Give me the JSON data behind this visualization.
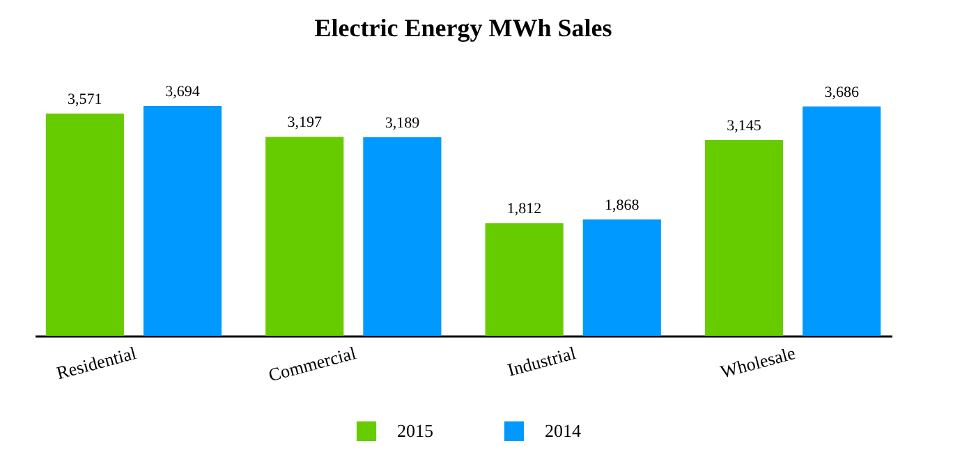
{
  "chart_data": {
    "type": "bar",
    "title": "Electric Energy MWh Sales",
    "categories": [
      "Residential",
      "Commercial",
      "Industrial",
      "Wholesale"
    ],
    "series": [
      {
        "name": "2015",
        "color": "#66cc00",
        "values": [
          3571,
          3197,
          1812,
          3145
        ],
        "value_labels": [
          "3,571",
          "3,197",
          "1,812",
          "3,145"
        ]
      },
      {
        "name": "2014",
        "color": "#0099ff",
        "values": [
          3694,
          3189,
          1868,
          3686
        ],
        "value_labels": [
          "3,694",
          "3,189",
          "1,868",
          "3,686"
        ]
      }
    ],
    "tick_labels": "x",
    "legend": "bottom",
    "grid": false
  }
}
